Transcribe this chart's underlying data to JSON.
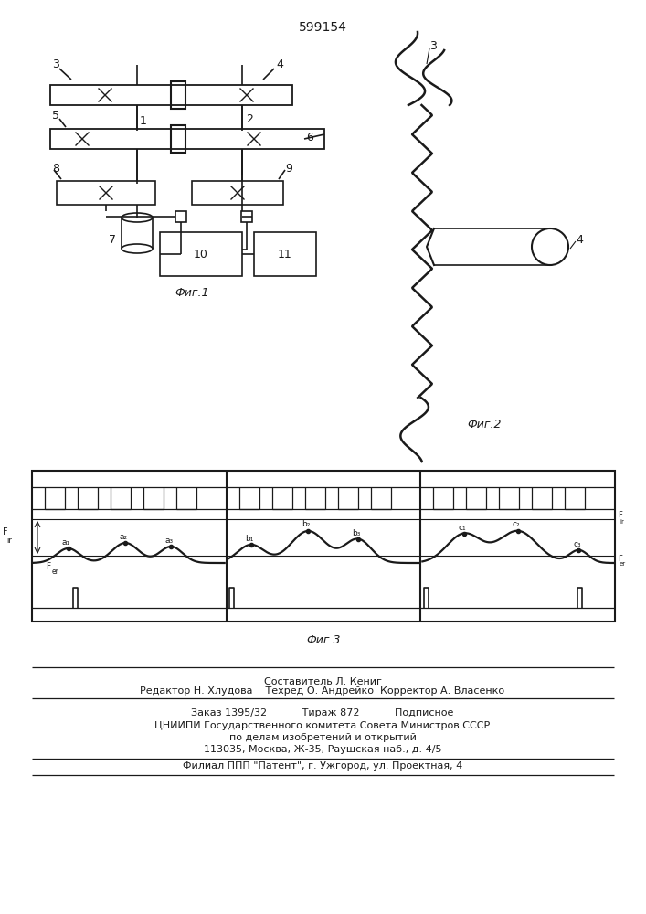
{
  "title": "599154",
  "fig1_label": "Фиг.1",
  "fig2_label": "Фиг.2",
  "fig3_label": "Фиг.3",
  "bg_color": "#ffffff",
  "line_color": "#1a1a1a",
  "footer_lines": [
    "Составитель Л. Кениг",
    "Редактор Н. Хлудова    Техред О. Андрейко  Корректор А. Власенко",
    "Заказ 1395/32           Тираж 872           Подписное",
    "ЦНИИПИ Государственного комитета Совета Министров СССР",
    "по делам изобретений и открытий",
    "113035, Москва, Ж-35, Раушская наб., д. 4/5",
    "Филиал ППП \"Патент\", г. Ужгород, ул. Проектная, 4"
  ]
}
